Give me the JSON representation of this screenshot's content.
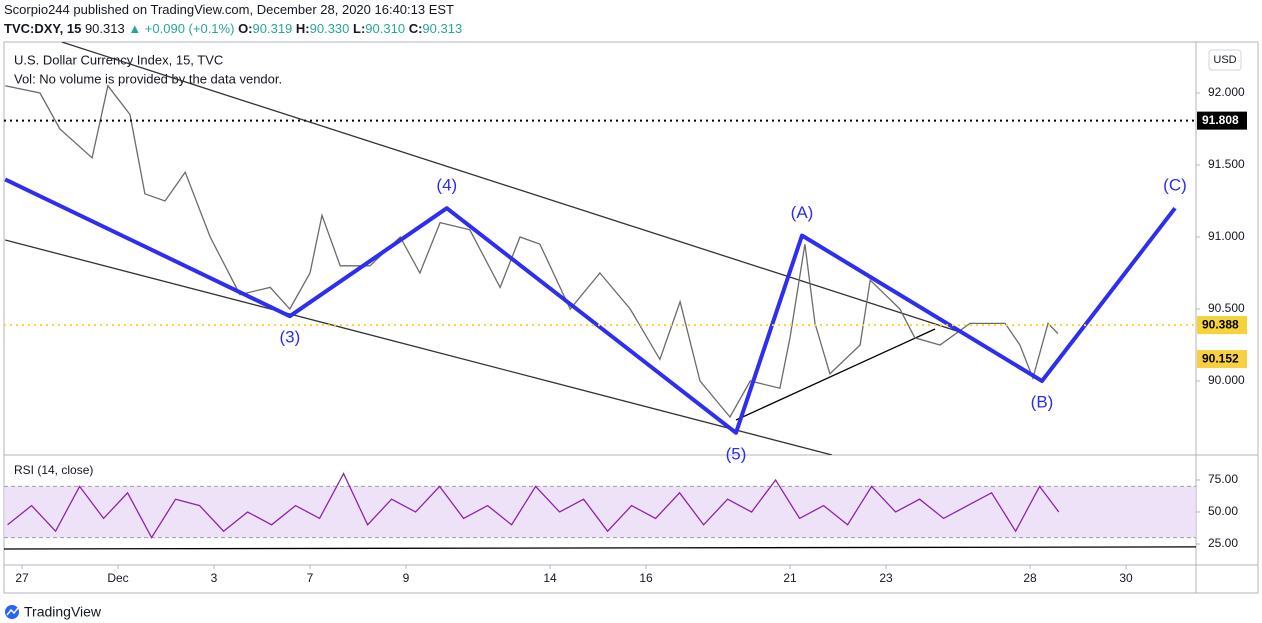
{
  "header": {
    "published": "Scorpio244 published on TradingView.com, December 28, 2020 16:40:13 EST",
    "symbol": "TVC:DXY, 15",
    "last": "90.313",
    "change": "▲ +0.090 (+0.1%)",
    "o_label": "O:",
    "o": "90.319",
    "h_label": "H:",
    "h": "90.330",
    "l_label": "L:",
    "l": "90.310",
    "c_label": "C:",
    "c": "90.313"
  },
  "footer": "TradingView",
  "chart_data": [
    {
      "type": "line",
      "title": "U.S. Dollar Currency Index, 15, TVC",
      "subtitle": "Vol: No volume is provided by the data vendor.",
      "currency": "USD",
      "xlim": [
        -0.375,
        24.458
      ],
      "xticks": [
        {
          "value": 0,
          "label": "27"
        },
        {
          "value": 2,
          "label": "Dec"
        },
        {
          "value": 4,
          "label": "3"
        },
        {
          "value": 6,
          "label": "7"
        },
        {
          "value": 8,
          "label": "9"
        },
        {
          "value": 11,
          "label": "14"
        },
        {
          "value": 13,
          "label": "16"
        },
        {
          "value": 16,
          "label": "21"
        },
        {
          "value": 18,
          "label": "23"
        },
        {
          "value": 21,
          "label": "28"
        },
        {
          "value": 23,
          "label": "30"
        }
      ],
      "ylim": [
        89.486,
        92.354
      ],
      "yticks": [
        {
          "value": 90,
          "label": "90.000"
        },
        {
          "value": 90.5,
          "label": "90.500"
        },
        {
          "value": 91,
          "label": "91.000"
        },
        {
          "value": 91.5,
          "label": "91.500"
        },
        {
          "value": 92,
          "label": "92.000"
        }
      ],
      "series": [
        {
          "color": "#6b6b6b",
          "x": [
            -0.35,
            0.375,
            0.79,
            1.46,
            1.79,
            2.25,
            2.56,
            2.98,
            3.4,
            3.92,
            4.54,
            5.17,
            5.58,
            6.0,
            6.25,
            6.63,
            7.25,
            7.88,
            8.29,
            8.71,
            9.33,
            9.96,
            10.375,
            10.79,
            11.42,
            12.04,
            12.67,
            13.29,
            13.71,
            14.125,
            14.75,
            15.17,
            15.79,
            16.0,
            16.31,
            16.52,
            16.83,
            17.46,
            17.67,
            18.29,
            18.6,
            19.125,
            19.75,
            20.48,
            20.79,
            21.06,
            21.375,
            21.58
          ],
          "values": [
            92.05,
            92.0,
            91.75,
            91.55,
            92.05,
            91.85,
            91.3,
            91.25,
            91.45,
            91.0,
            90.6,
            90.65,
            90.5,
            90.75,
            91.15,
            90.8,
            90.8,
            91.0,
            90.75,
            91.1,
            91.05,
            90.65,
            91.0,
            90.95,
            90.5,
            90.75,
            90.5,
            90.15,
            90.55,
            90.0,
            89.75,
            90.0,
            89.95,
            90.3,
            90.95,
            90.4,
            90.05,
            90.25,
            90.7,
            90.5,
            90.3,
            90.25,
            90.4,
            90.4,
            90.25,
            90.02,
            90.4,
            90.33
          ]
        }
      ],
      "levels": [
        {
          "value": 91.808,
          "color": "#000000",
          "text_color": "#ffffff",
          "line": true
        },
        {
          "value": 90.388,
          "color": "#f5d33a",
          "text_color": "#000000",
          "line": true
        },
        {
          "value": 90.152,
          "color": "#f8cf3e",
          "text_color": "#000000",
          "line": false
        }
      ],
      "wave": {
        "color": "#2d2ef0",
        "x": [
          -0.35,
          5.58,
          8.85,
          14.875,
          16.25,
          21.25,
          24.02
        ],
        "y": [
          91.4,
          90.45,
          91.2,
          89.64,
          91.01,
          90.0,
          91.2
        ],
        "labels": [
          null,
          "(3)",
          "(4)",
          "(5)",
          "(A)",
          "(B)",
          "(C)"
        ]
      },
      "trendlines": [
        {
          "color": "#333333",
          "x": [
            0.83,
            19.54
          ],
          "y": [
            92.354,
            90.34
          ]
        },
        {
          "color": "#333333",
          "x": [
            -0.35,
            16.875
          ],
          "y": [
            90.979,
            89.486
          ]
        },
        {
          "color": "#000000",
          "x": [
            14.875,
            19.02
          ],
          "y": [
            89.729,
            90.361
          ]
        }
      ]
    },
    {
      "type": "line",
      "title": "RSI (14, close)",
      "xlim": [
        -0.375,
        24.458
      ],
      "ylim": [
        8.6,
        94.5
      ],
      "yticks": [
        {
          "value": 25,
          "label": "25.00"
        },
        {
          "value": 50,
          "label": "50.00"
        },
        {
          "value": 75,
          "label": "75.00"
        }
      ],
      "band": [
        30,
        70
      ],
      "band_color": "#e7d5f7",
      "series": [
        {
          "color": "#8e24aa",
          "x": [
            -0.3,
            0.2,
            0.7,
            1.2,
            1.7,
            2.2,
            2.7,
            3.2,
            3.7,
            4.2,
            4.7,
            5.2,
            5.7,
            6.2,
            6.7,
            7.2,
            7.7,
            8.2,
            8.7,
            9.2,
            9.7,
            10.2,
            10.7,
            11.2,
            11.7,
            12.2,
            12.7,
            13.2,
            13.7,
            14.2,
            14.7,
            15.2,
            15.7,
            16.2,
            16.7,
            17.2,
            17.7,
            18.2,
            18.7,
            19.2,
            19.7,
            20.2,
            20.7,
            21.2,
            21.6
          ],
          "values": [
            40,
            55,
            35,
            70,
            45,
            65,
            30,
            60,
            55,
            35,
            50,
            40,
            55,
            45,
            80,
            40,
            60,
            50,
            70,
            45,
            55,
            40,
            70,
            50,
            60,
            35,
            55,
            45,
            65,
            40,
            60,
            50,
            75,
            45,
            55,
            40,
            70,
            50,
            60,
            45,
            55,
            65,
            35,
            70,
            50
          ]
        }
      ],
      "trendlines": [
        {
          "color": "#000000",
          "x": [
            -0.375,
            24.458
          ],
          "y": [
            21.1,
            22.7
          ]
        }
      ]
    }
  ]
}
